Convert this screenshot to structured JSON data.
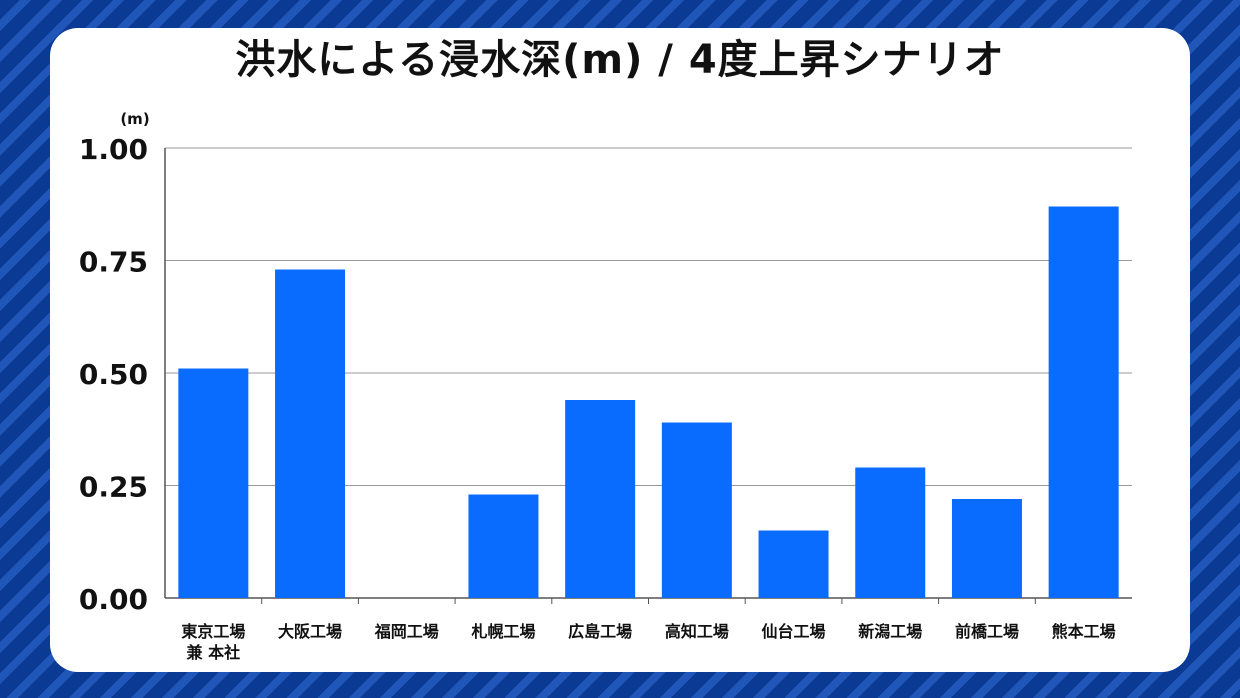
{
  "chart_data": {
    "type": "bar",
    "title": "洪水による浸水深(m) / 4度上昇シナリオ",
    "unit_label": "(m)",
    "categories": [
      [
        "東京工場",
        "兼 本社"
      ],
      [
        "大阪工場"
      ],
      [
        "福岡工場"
      ],
      [
        "札幌工場"
      ],
      [
        "広島工場"
      ],
      [
        "高知工場"
      ],
      [
        "仙台工場"
      ],
      [
        "新潟工場"
      ],
      [
        "前橋工場"
      ],
      [
        "熊本工場"
      ]
    ],
    "values": [
      0.51,
      0.73,
      0.0,
      0.23,
      0.44,
      0.39,
      0.15,
      0.29,
      0.22,
      0.87
    ],
    "ylim": [
      0,
      1.0
    ],
    "yticks": [
      "0.00",
      "0.25",
      "0.50",
      "0.75",
      "1.00"
    ],
    "grid": true,
    "bar_color": "#0a6cff"
  }
}
